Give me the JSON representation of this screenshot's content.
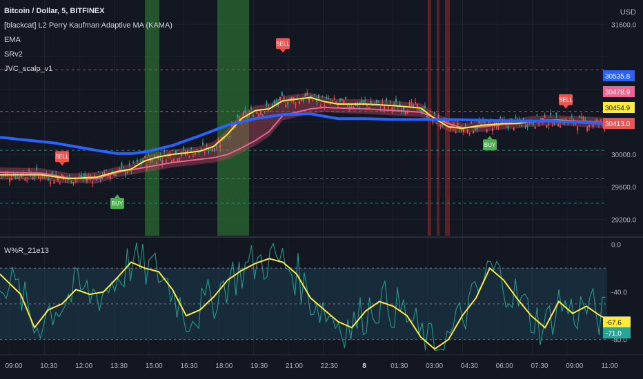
{
  "header": {
    "title": "Bitcoin / Dollar, 5, BITFINEX",
    "currency": "USD",
    "indicators": [
      "[blackcat] L2 Perry Kaufman Adaptive MA (KAMA)",
      "EMA",
      "SRv2",
      "JVC_scalp_v1"
    ]
  },
  "oscillator": {
    "label": "W%R_21e13"
  },
  "colors": {
    "background": "#131722",
    "grid": "#1e222d",
    "green_zone": "#2e7d32",
    "red_zone": "#8b2a2a",
    "ema_blue": "#2962ff",
    "yellow": "#ffeb3b",
    "pink": "#f06292",
    "up_candle": "#26a69a",
    "down_candle": "#ef5350",
    "teal": "#26a69a"
  },
  "chart_data": [
    {
      "type": "line",
      "title": "Bitcoin / Dollar, 5, BITFINEX",
      "x_ticks": [
        "09:00",
        "10:30",
        "12:00",
        "13:30",
        "15:00",
        "16:30",
        "18:00",
        "19:30",
        "21:00",
        "22:30",
        "8",
        "01:30",
        "03:00",
        "04:30",
        "06:00",
        "07:30",
        "09:00",
        "11:00"
      ],
      "y_ticks": [
        29200.0,
        29600.0,
        30000.0,
        31600.0
      ],
      "ylim": [
        29000,
        31900
      ],
      "series": [
        {
          "name": "EMA",
          "color": "#2962ff",
          "x": [
            0,
            8,
            14,
            17,
            19,
            21,
            23,
            25,
            29,
            33,
            37,
            41,
            45,
            49,
            53,
            57,
            61,
            65,
            70,
            75,
            80,
            88
          ],
          "values": [
            30210,
            30140,
            30050,
            30010,
            30010,
            30030,
            30070,
            30110,
            30230,
            30360,
            30440,
            30490,
            30500,
            30440,
            30440,
            30430,
            30430,
            30430,
            30420,
            30410,
            30410,
            30380
          ]
        },
        {
          "name": "KAMA (yellow)",
          "color": "#ffeb3b",
          "x": [
            0,
            6,
            10,
            14,
            17,
            19,
            21,
            23,
            25,
            27,
            29,
            31,
            33,
            35,
            37,
            39,
            41,
            45,
            47,
            49,
            53,
            57,
            61,
            63,
            65,
            67,
            70,
            73,
            75,
            77,
            79,
            81,
            84,
            88
          ],
          "values": [
            29750,
            29750,
            29700,
            29720,
            29790,
            29820,
            29920,
            29970,
            30000,
            30020,
            30040,
            30100,
            30250,
            30440,
            30540,
            30560,
            30660,
            30700,
            30650,
            30620,
            30620,
            30600,
            30570,
            30440,
            30340,
            30320,
            30360,
            30380,
            30380,
            30410,
            30420,
            30420,
            30400,
            30380
          ]
        },
        {
          "name": "Adaptive MA (pink)",
          "color": "#f06292",
          "x": [
            0,
            6,
            10,
            14,
            17,
            19,
            21,
            23,
            25,
            27,
            29,
            31,
            33,
            35,
            37,
            39,
            41,
            45,
            47,
            49,
            53,
            57,
            61,
            63,
            65,
            67,
            70,
            73,
            75,
            77,
            79,
            81,
            84,
            88
          ],
          "values": [
            29780,
            29770,
            29710,
            29700,
            29780,
            29810,
            29840,
            29870,
            29900,
            29920,
            29940,
            29960,
            30000,
            30080,
            30170,
            30280,
            30480,
            30560,
            30580,
            30570,
            30560,
            30540,
            30520,
            30450,
            30380,
            30330,
            30340,
            30370,
            30380,
            30400,
            30410,
            30420,
            30410,
            30390
          ]
        }
      ],
      "horizontal_levels": [
        31040,
        30530,
        30050,
        29700,
        29400
      ],
      "price_labels": [
        {
          "text": "30535.8",
          "value": 30535.8,
          "color": "#2962ff"
        },
        {
          "text": "30478.9",
          "value": 30478.9,
          "color": "#f06292"
        },
        {
          "text": "30454.9",
          "value": 30454.9,
          "color": "#ffeb3b"
        },
        {
          "text": "30413.0",
          "value": 30413.0,
          "color": "#ef5350"
        }
      ],
      "signals": [
        {
          "text": "SELL",
          "x": 9,
          "value": 29770,
          "side": "above"
        },
        {
          "text": "BUY",
          "x": 17,
          "value": 29550,
          "side": "below"
        },
        {
          "text": "SELL",
          "x": 41,
          "value": 31160,
          "side": "above"
        },
        {
          "text": "BUY",
          "x": 71,
          "value": 30270,
          "side": "below"
        },
        {
          "text": "SELL",
          "x": 82,
          "value": 30470,
          "side": "above"
        }
      ]
    },
    {
      "type": "line",
      "title": "W%R_21e13",
      "y_ticks": [
        0.0,
        -40.0,
        -80.0
      ],
      "ylim": [
        -90,
        5
      ],
      "levels": [
        -20,
        -50,
        -80
      ],
      "series": [
        {
          "name": "signal",
          "color": "#ffeb3b",
          "x": [
            0,
            3,
            5,
            7,
            9,
            11,
            13,
            15,
            17,
            19,
            21,
            23,
            25,
            27,
            29,
            31,
            33,
            35,
            37,
            39,
            41,
            43,
            45,
            47,
            49,
            51,
            53,
            55,
            57,
            59,
            61,
            63,
            65,
            67,
            69,
            71,
            73,
            75,
            77,
            79,
            81,
            83,
            85,
            87,
            88
          ],
          "values": [
            -25,
            -42,
            -70,
            -55,
            -50,
            -38,
            -42,
            -40,
            -28,
            -15,
            -20,
            -23,
            -38,
            -60,
            -55,
            -44,
            -30,
            -22,
            -16,
            -12,
            -15,
            -25,
            -45,
            -55,
            -65,
            -70,
            -56,
            -48,
            -52,
            -60,
            -78,
            -88,
            -80,
            -60,
            -45,
            -20,
            -30,
            -46,
            -60,
            -70,
            -48,
            -58,
            -52,
            -60,
            -63
          ]
        },
        {
          "name": "W%R",
          "color": "#26a69a"
        }
      ],
      "value_labels": [
        {
          "text": "-67.6",
          "value": -67.6,
          "color": "#ffeb3b"
        },
        {
          "text": "-71.0",
          "value": -71.0,
          "color": "#26a69a"
        }
      ]
    }
  ]
}
